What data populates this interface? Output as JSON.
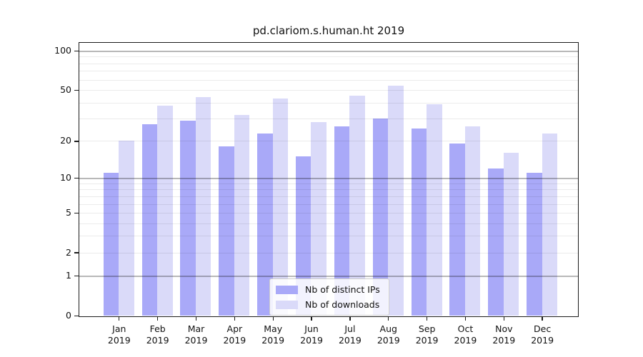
{
  "chart_data": {
    "type": "bar",
    "title": "pd.clariom.s.human.ht 2019",
    "categories": [
      "Jan",
      "Feb",
      "Mar",
      "Apr",
      "May",
      "Jun",
      "Jul",
      "Aug",
      "Sep",
      "Oct",
      "Nov",
      "Dec"
    ],
    "year": "2019",
    "series": [
      {
        "name": "Nb of distinct IPs",
        "color": "#a9a9f8",
        "values": [
          11,
          27,
          29,
          18,
          23,
          15,
          26,
          30,
          25,
          19,
          12,
          11
        ]
      },
      {
        "name": "Nb of downloads",
        "color": "#dadaf9",
        "values": [
          20,
          38,
          44,
          32,
          43,
          28,
          45,
          54,
          39,
          26,
          16,
          23
        ]
      }
    ],
    "scale": "log10(1+v)",
    "ylim": [
      0,
      115
    ],
    "y_tick_values": [
      100,
      50,
      20,
      10,
      5,
      2,
      1,
      0
    ],
    "y_tick_labels": [
      "100",
      "50",
      "20",
      "10",
      "5",
      "2",
      "1",
      "0"
    ],
    "major_grid_values": [
      1,
      10,
      100
    ],
    "minor_grid_values": [
      2,
      3,
      4,
      5,
      6,
      7,
      8,
      9,
      20,
      30,
      40,
      50,
      60,
      70,
      80,
      90
    ],
    "grid": "horizontal",
    "legend_position": "inside lower-center"
  }
}
